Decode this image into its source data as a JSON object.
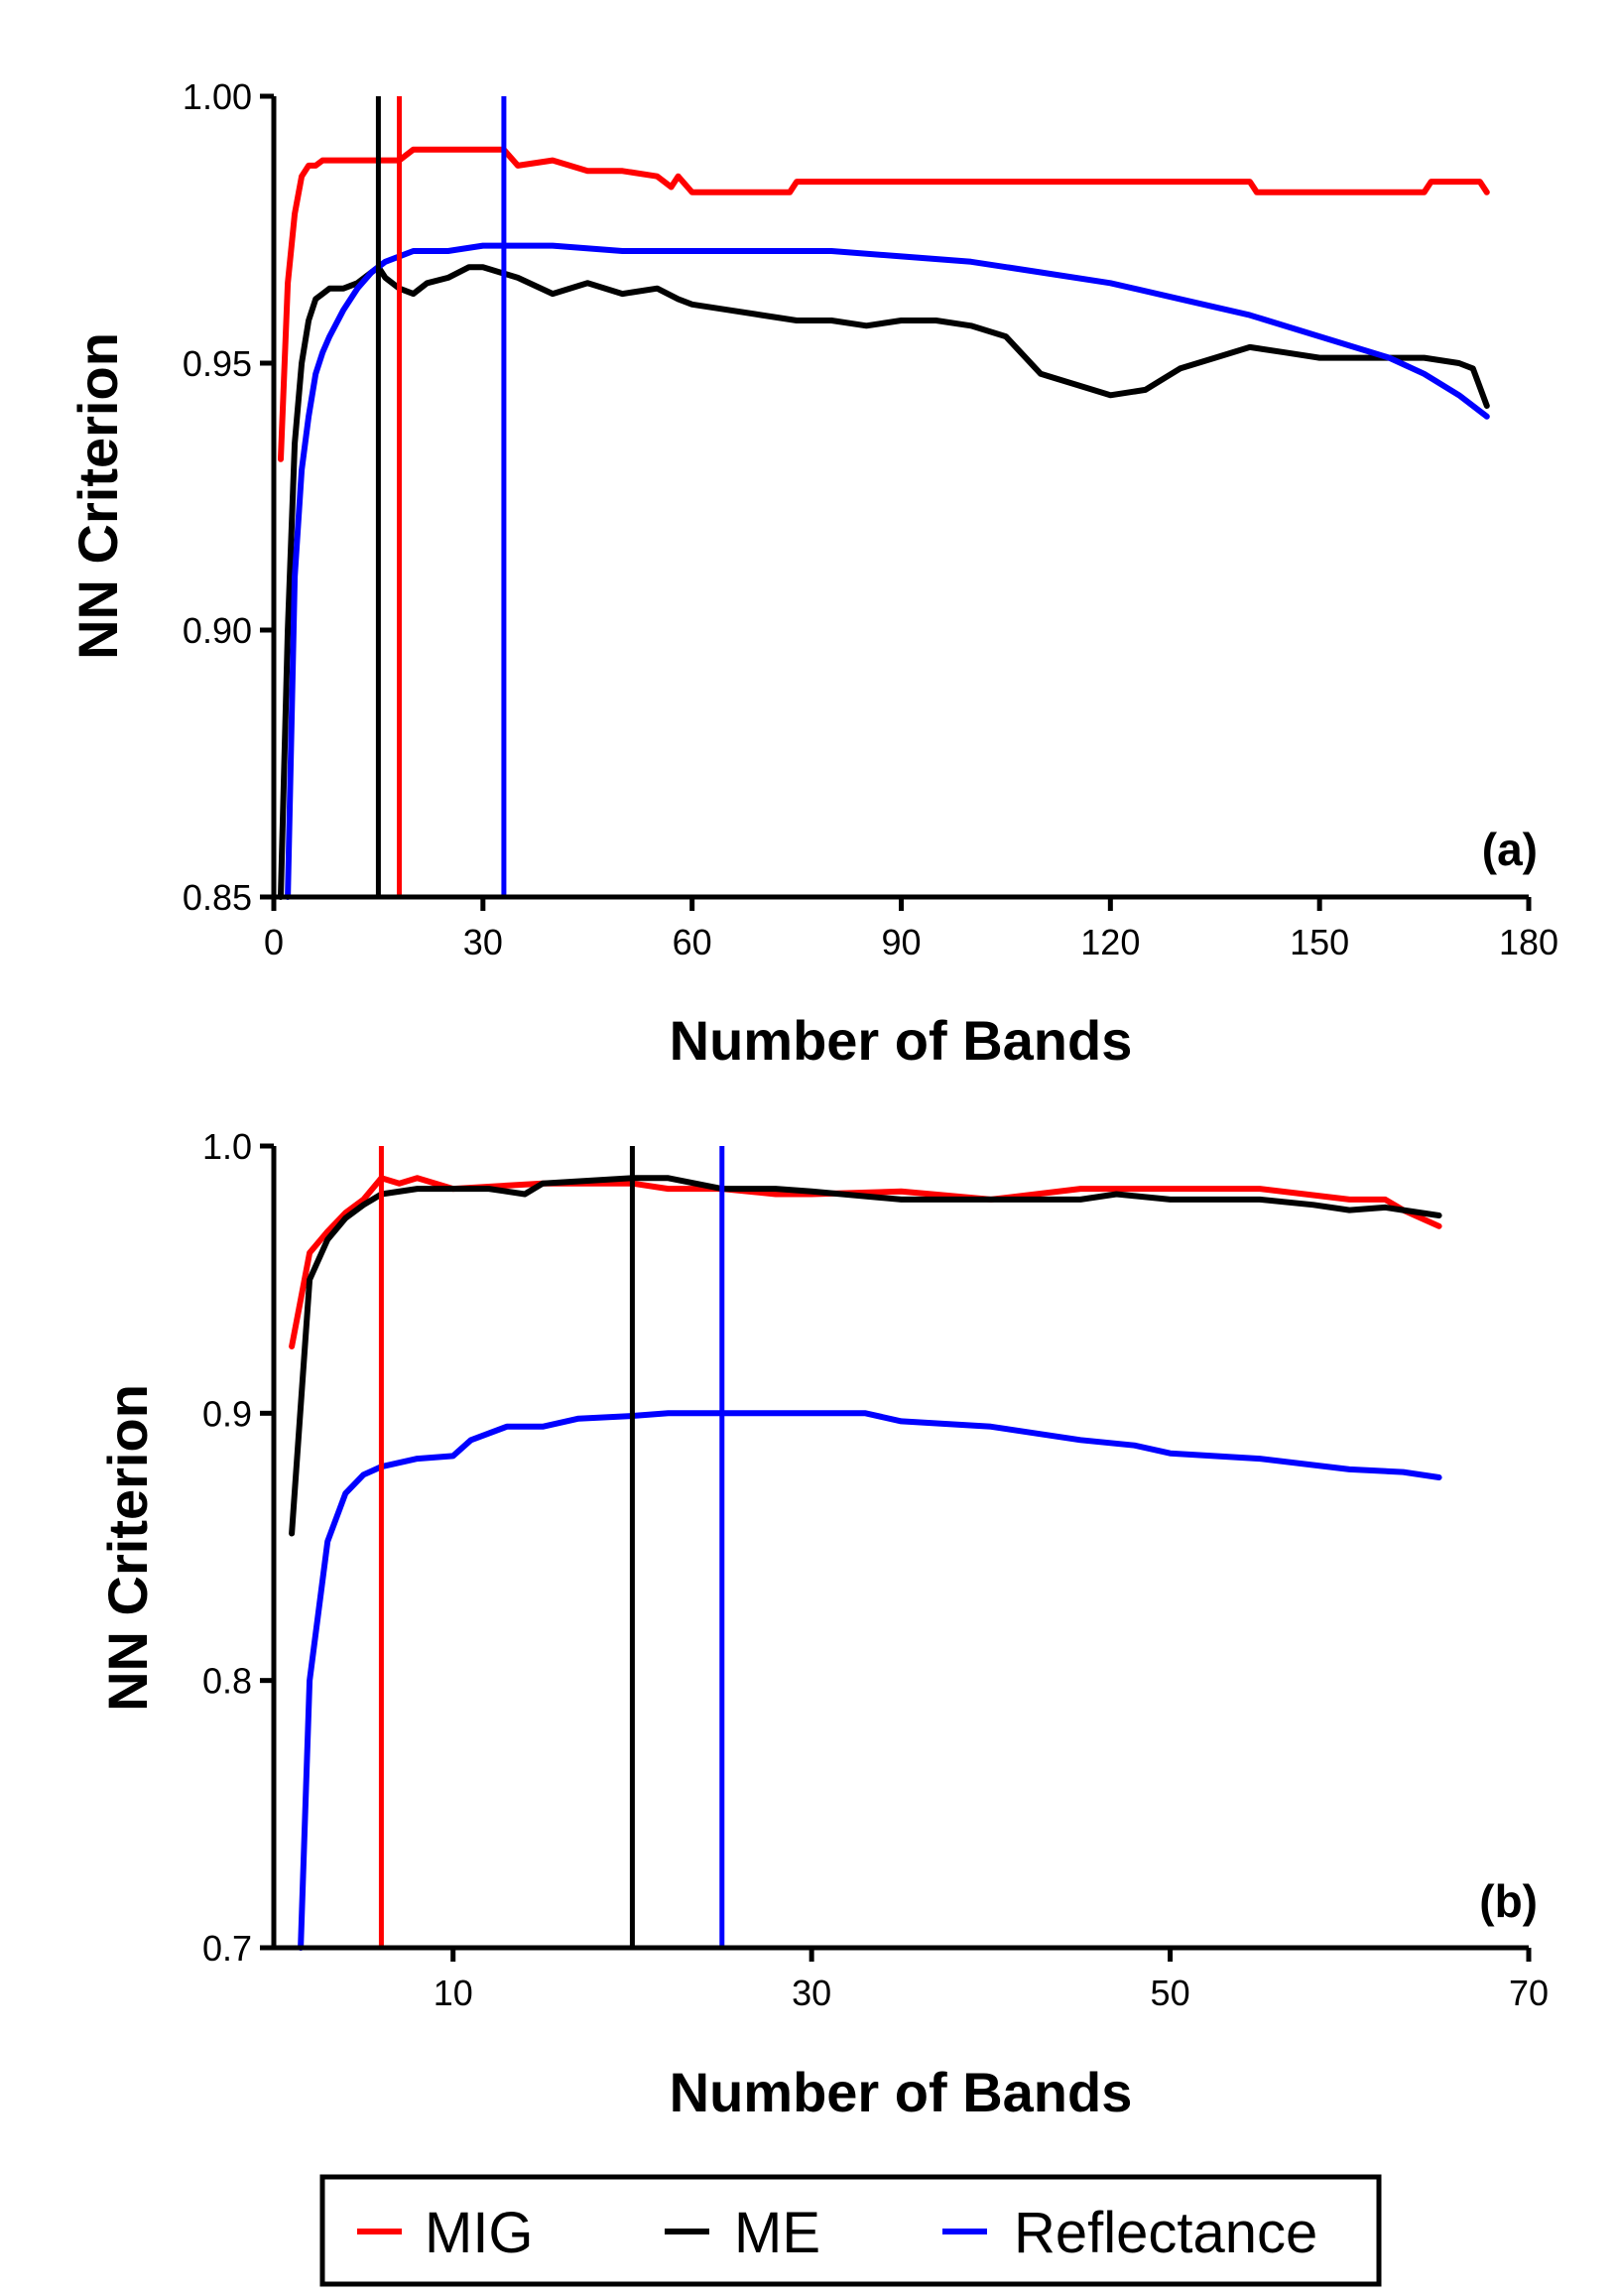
{
  "legend": {
    "entries": [
      {
        "label": "MIG",
        "color": "#ff0000"
      },
      {
        "label": "ME",
        "color": "#000000"
      },
      {
        "label": "Reflectance",
        "color": "#0000ff"
      }
    ]
  },
  "chart_data": [
    {
      "type": "line",
      "panel_label": "(a)",
      "xlabel": "Number of Bands",
      "ylabel": "NN Criterion",
      "xlim": [
        0,
        180
      ],
      "ylim": [
        0.85,
        1.0
      ],
      "xticks": [
        0,
        30,
        60,
        90,
        120,
        150,
        180
      ],
      "xtick_labels": [
        "0",
        "30",
        "60",
        "90",
        "120",
        "150",
        "180"
      ],
      "yticks": [
        0.85,
        0.9,
        0.95,
        1.0
      ],
      "ytick_labels": [
        "0.85",
        "0.90",
        "0.95",
        "1.00"
      ],
      "grid": false,
      "series": [
        {
          "name": "MIG",
          "color": "#ff0000",
          "x": [
            1,
            2,
            3,
            4,
            5,
            6,
            7,
            10,
            15,
            18,
            20,
            30,
            33,
            35,
            40,
            45,
            50,
            55,
            57,
            58,
            60,
            65,
            70,
            74,
            75,
            80,
            90,
            100,
            110,
            120,
            130,
            138,
            140,
            141,
            150,
            160,
            165,
            166,
            170,
            173,
            174
          ],
          "y": [
            0.932,
            0.965,
            0.978,
            0.985,
            0.987,
            0.987,
            0.988,
            0.988,
            0.988,
            0.988,
            0.99,
            0.99,
            0.99,
            0.987,
            0.988,
            0.986,
            0.986,
            0.985,
            0.983,
            0.985,
            0.982,
            0.982,
            0.982,
            0.982,
            0.984,
            0.984,
            0.984,
            0.984,
            0.984,
            0.984,
            0.984,
            0.984,
            0.984,
            0.982,
            0.982,
            0.982,
            0.982,
            0.984,
            0.984,
            0.984,
            0.982
          ]
        },
        {
          "name": "ME",
          "color": "#000000",
          "x": [
            1,
            2,
            3,
            4,
            5,
            6,
            7,
            8,
            10,
            12,
            14,
            15,
            16,
            18,
            20,
            22,
            25,
            28,
            30,
            35,
            40,
            45,
            50,
            55,
            58,
            60,
            65,
            70,
            75,
            80,
            85,
            90,
            95,
            100,
            105,
            110,
            115,
            120,
            125,
            130,
            135,
            140,
            145,
            150,
            155,
            160,
            165,
            170,
            172,
            174
          ],
          "y": [
            0.85,
            0.9,
            0.935,
            0.95,
            0.958,
            0.962,
            0.963,
            0.964,
            0.964,
            0.965,
            0.967,
            0.968,
            0.966,
            0.964,
            0.963,
            0.965,
            0.966,
            0.968,
            0.968,
            0.966,
            0.963,
            0.965,
            0.963,
            0.964,
            0.962,
            0.961,
            0.96,
            0.959,
            0.958,
            0.958,
            0.957,
            0.958,
            0.958,
            0.957,
            0.955,
            0.948,
            0.946,
            0.944,
            0.945,
            0.949,
            0.951,
            0.953,
            0.952,
            0.951,
            0.951,
            0.951,
            0.951,
            0.95,
            0.949,
            0.942
          ]
        },
        {
          "name": "Reflectance",
          "color": "#0000ff",
          "x": [
            2,
            3,
            4,
            5,
            6,
            7,
            8,
            10,
            12,
            14,
            16,
            18,
            20,
            25,
            30,
            35,
            40,
            50,
            60,
            70,
            80,
            90,
            100,
            110,
            120,
            130,
            140,
            150,
            155,
            160,
            165,
            170,
            174
          ],
          "y": [
            0.85,
            0.91,
            0.93,
            0.94,
            0.948,
            0.952,
            0.955,
            0.96,
            0.964,
            0.967,
            0.969,
            0.97,
            0.971,
            0.971,
            0.972,
            0.972,
            0.972,
            0.971,
            0.971,
            0.971,
            0.971,
            0.97,
            0.969,
            0.967,
            0.965,
            0.962,
            0.959,
            0.955,
            0.953,
            0.951,
            0.948,
            0.944,
            0.94
          ]
        }
      ],
      "vertical_lines": [
        {
          "name": "ME",
          "x": 15,
          "color": "#000000"
        },
        {
          "name": "MIG",
          "x": 18,
          "color": "#ff0000"
        },
        {
          "name": "Reflectance",
          "x": 33,
          "color": "#0000ff"
        }
      ]
    },
    {
      "type": "line",
      "panel_label": "(b)",
      "xlabel": "Number of Bands",
      "ylabel": "NN Criterion",
      "xlim": [
        0,
        70
      ],
      "ylim": [
        0.7,
        1.0
      ],
      "xticks": [
        10,
        30,
        50,
        70
      ],
      "xtick_labels": [
        "10",
        "30",
        "50",
        "70"
      ],
      "yticks": [
        0.7,
        0.8,
        0.9,
        1.0
      ],
      "ytick_labels": [
        "0.7",
        "0.8",
        "0.9",
        "1.0"
      ],
      "grid": false,
      "series": [
        {
          "name": "MIG",
          "color": "#ff0000",
          "x": [
            1,
            2,
            3,
            4,
            5,
            6,
            7,
            8,
            10,
            15,
            20,
            22,
            25,
            28,
            30,
            35,
            40,
            45,
            50,
            55,
            60,
            62,
            63,
            64,
            65
          ],
          "y": [
            0.925,
            0.96,
            0.968,
            0.975,
            0.98,
            0.988,
            0.986,
            0.988,
            0.984,
            0.986,
            0.986,
            0.984,
            0.984,
            0.982,
            0.982,
            0.983,
            0.98,
            0.984,
            0.984,
            0.984,
            0.98,
            0.98,
            0.976,
            0.973,
            0.97
          ]
        },
        {
          "name": "ME",
          "color": "#000000",
          "x": [
            1,
            2,
            3,
            4,
            5,
            6,
            8,
            10,
            12,
            14,
            15,
            20,
            22,
            25,
            28,
            30,
            35,
            40,
            45,
            47,
            50,
            55,
            58,
            60,
            62,
            63,
            65
          ],
          "y": [
            0.855,
            0.95,
            0.965,
            0.973,
            0.978,
            0.982,
            0.984,
            0.984,
            0.984,
            0.982,
            0.986,
            0.988,
            0.988,
            0.984,
            0.984,
            0.983,
            0.98,
            0.98,
            0.98,
            0.982,
            0.98,
            0.98,
            0.978,
            0.976,
            0.977,
            0.976,
            0.974
          ]
        },
        {
          "name": "Reflectance",
          "color": "#0000ff",
          "x": [
            1.5,
            2,
            3,
            4,
            5,
            6,
            8,
            10,
            11,
            13,
            15,
            17,
            20,
            22,
            25,
            28,
            30,
            33,
            35,
            40,
            45,
            48,
            50,
            55,
            60,
            63,
            65
          ],
          "y": [
            0.7,
            0.8,
            0.852,
            0.87,
            0.877,
            0.88,
            0.883,
            0.884,
            0.89,
            0.895,
            0.895,
            0.898,
            0.899,
            0.9,
            0.9,
            0.9,
            0.9,
            0.9,
            0.897,
            0.895,
            0.89,
            0.888,
            0.885,
            0.883,
            0.879,
            0.878,
            0.876
          ]
        }
      ],
      "vertical_lines": [
        {
          "name": "MIG",
          "x": 6,
          "color": "#ff0000"
        },
        {
          "name": "ME",
          "x": 20,
          "color": "#000000"
        },
        {
          "name": "Reflectance",
          "x": 25,
          "color": "#0000ff"
        }
      ]
    }
  ]
}
